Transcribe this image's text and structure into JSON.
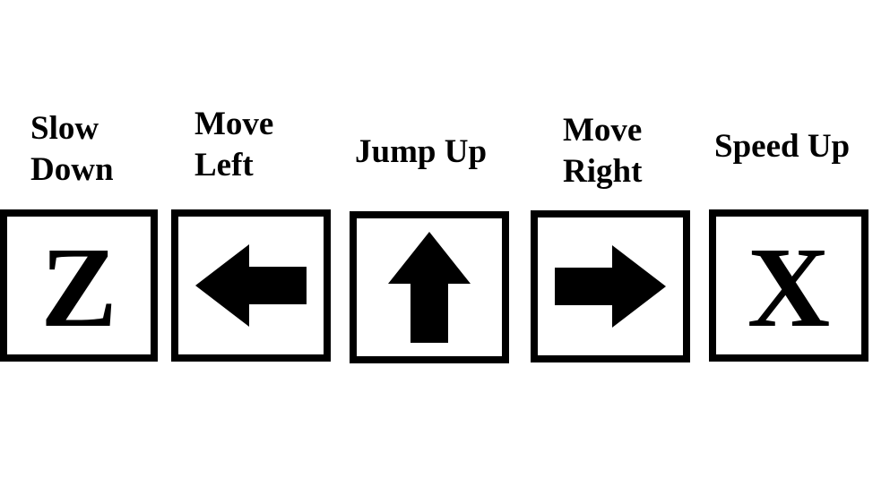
{
  "controls": [
    {
      "action_lines": [
        "Slow",
        "Down"
      ],
      "key": "Z",
      "icon": null
    },
    {
      "action_lines": [
        "Move",
        "Left"
      ],
      "key": "",
      "icon": "left-arrow-icon"
    },
    {
      "action_lines": [
        "Jump Up"
      ],
      "key": "",
      "icon": "up-arrow-icon"
    },
    {
      "action_lines": [
        "Move",
        "Right"
      ],
      "key": "",
      "icon": "right-arrow-icon"
    },
    {
      "action_lines": [
        "Speed Up"
      ],
      "key": "X",
      "icon": null
    }
  ],
  "colors": {
    "ink": "#000000",
    "background": "#ffffff"
  }
}
